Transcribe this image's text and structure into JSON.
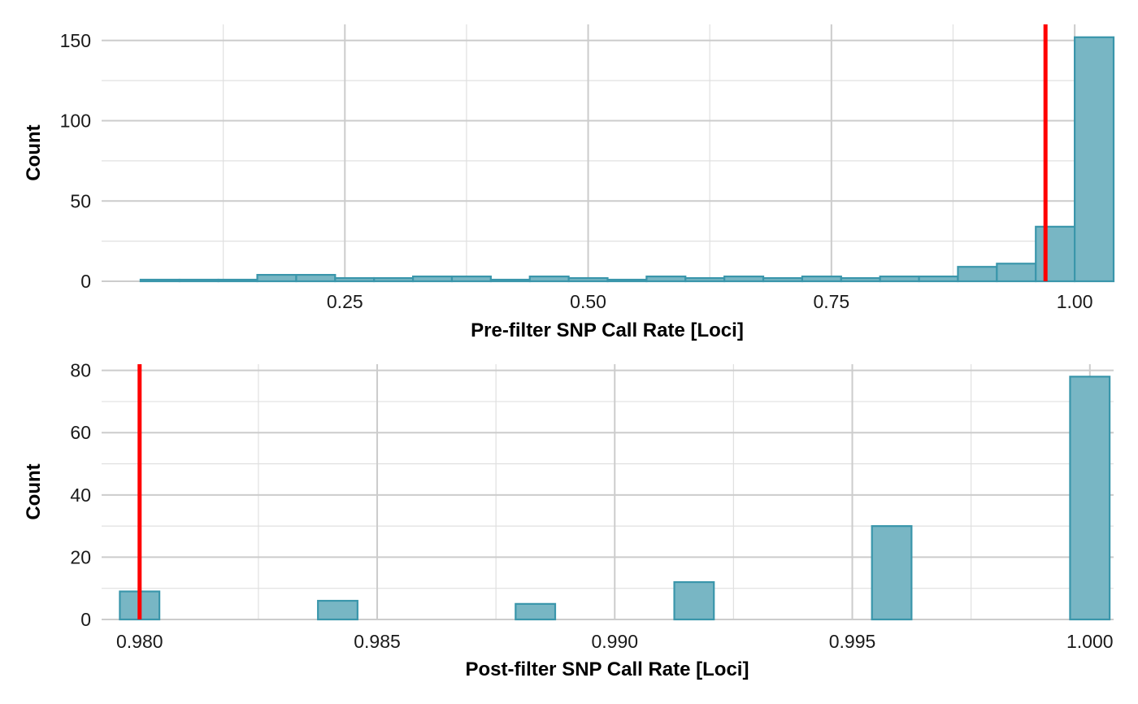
{
  "colors": {
    "bar_fill": "#78b6c4",
    "bar_stroke": "#3a96ab",
    "threshold": "#ff0000",
    "grid_major": "#cccccc",
    "grid_minor": "#e0e0e0"
  },
  "chart_data": [
    {
      "type": "bar",
      "subtype": "histogram",
      "title": "",
      "xlabel": "Pre-filter SNP Call Rate [Loci]",
      "ylabel": "Count",
      "xlim": [
        0.0,
        1.04
      ],
      "ylim": [
        0,
        160
      ],
      "x_ticks": [
        0.25,
        0.5,
        0.75,
        1.0
      ],
      "x_tick_labels": [
        "0.25",
        "0.50",
        "0.75",
        "1.00"
      ],
      "y_ticks": [
        0,
        50,
        100,
        150
      ],
      "y_tick_labels": [
        "0",
        "50",
        "100",
        "150"
      ],
      "bin_width": 0.04,
      "bin_centers": [
        0.06,
        0.1,
        0.14,
        0.18,
        0.22,
        0.26,
        0.3,
        0.34,
        0.38,
        0.42,
        0.46,
        0.5,
        0.54,
        0.58,
        0.62,
        0.66,
        0.7,
        0.74,
        0.78,
        0.82,
        0.86,
        0.9,
        0.94,
        0.98,
        1.02
      ],
      "values": [
        1,
        1,
        1,
        4,
        4,
        2,
        2,
        3,
        3,
        1,
        3,
        2,
        1,
        3,
        2,
        3,
        2,
        3,
        2,
        3,
        3,
        9,
        11,
        34,
        152
      ],
      "threshold_x": 0.97,
      "grid": true
    },
    {
      "type": "bar",
      "subtype": "histogram",
      "title": "",
      "xlabel": "Post-filter SNP Call Rate [Loci]",
      "ylabel": "Count",
      "xlim": [
        0.9792,
        1.0005
      ],
      "ylim": [
        0,
        82
      ],
      "x_ticks": [
        0.98,
        0.985,
        0.99,
        0.995,
        1.0
      ],
      "x_tick_labels": [
        "0.980",
        "0.985",
        "0.990",
        "0.995",
        "1.000"
      ],
      "y_ticks": [
        0,
        20,
        40,
        60,
        80
      ],
      "y_tick_labels": [
        "0",
        "20",
        "40",
        "60",
        "80"
      ],
      "bin_width": 0.000833,
      "bin_centers": [
        0.98,
        0.98083,
        0.98167,
        0.9825,
        0.98333,
        0.98417,
        0.985,
        0.98583,
        0.98667,
        0.9875,
        0.98833,
        0.98917,
        0.99,
        0.99083,
        0.99167,
        0.9925,
        0.99333,
        0.99417,
        0.995,
        0.99583,
        0.99667,
        0.9975,
        0.99833,
        0.99917,
        1.0
      ],
      "values": [
        9,
        0,
        0,
        0,
        0,
        6,
        0,
        0,
        0,
        0,
        5,
        0,
        0,
        0,
        12,
        0,
        0,
        0,
        0,
        30,
        0,
        0,
        0,
        0,
        78
      ],
      "threshold_x": 0.98,
      "grid": true
    }
  ]
}
